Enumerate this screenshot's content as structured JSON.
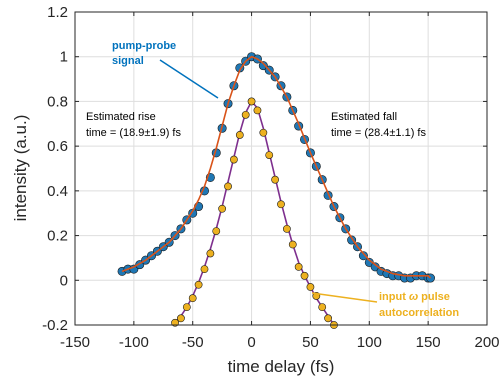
{
  "chart_data": {
    "type": "scatter",
    "xlabel": "time delay (fs)",
    "ylabel": "intensity (a.u.)",
    "xlim": [
      -150,
      200
    ],
    "ylim": [
      -0.2,
      1.2
    ],
    "xticks": [
      -150,
      -100,
      -50,
      0,
      50,
      100,
      150,
      200
    ],
    "xtick_labels": [
      "-150",
      "-100",
      "-50",
      "0",
      "50",
      "100",
      "150",
      "200"
    ],
    "yticks": [
      -0.2,
      0,
      0.2,
      0.4,
      0.6,
      0.8,
      1,
      1.2
    ],
    "ytick_labels": [
      "-0.2",
      "0",
      "0.2",
      "0.4",
      "0.6",
      "0.8",
      "1",
      "1.2"
    ],
    "grid": true,
    "colors": {
      "pump_marker": "#1f77b4",
      "pump_fit": "#d95319",
      "autocorr_marker": "#edb120",
      "autocorr_fit": "#7e2f8e",
      "pump_label": "#0072bd",
      "autocorr_label": "#edb120"
    },
    "series": [
      {
        "name": "pump-probe signal",
        "kind": "scatter",
        "x": [
          -110,
          -105,
          -100,
          -95,
          -90,
          -85,
          -80,
          -75,
          -70,
          -65,
          -60,
          -55,
          -50,
          -45,
          -40,
          -35,
          -30,
          -25,
          -20,
          -15,
          -10,
          -5,
          0,
          5,
          10,
          15,
          20,
          25,
          30,
          35,
          40,
          45,
          50,
          55,
          60,
          65,
          70,
          75,
          80,
          85,
          90,
          95,
          100,
          105,
          110,
          115,
          120,
          125,
          130,
          135,
          140,
          145,
          150,
          152
        ],
        "y": [
          0.04,
          0.05,
          0.05,
          0.07,
          0.09,
          0.11,
          0.13,
          0.15,
          0.17,
          0.2,
          0.23,
          0.27,
          0.3,
          0.33,
          0.4,
          0.46,
          0.57,
          0.68,
          0.79,
          0.87,
          0.95,
          0.98,
          1.0,
          0.99,
          0.96,
          0.94,
          0.91,
          0.87,
          0.82,
          0.76,
          0.69,
          0.63,
          0.57,
          0.51,
          0.45,
          0.38,
          0.33,
          0.28,
          0.23,
          0.18,
          0.15,
          0.11,
          0.08,
          0.06,
          0.04,
          0.03,
          0.02,
          0.02,
          0.01,
          0.01,
          0.02,
          0.02,
          0.01,
          0.01
        ]
      },
      {
        "name": "pump-probe fit",
        "kind": "line",
        "x": [
          -110,
          -100,
          -90,
          -80,
          -70,
          -60,
          -50,
          -45,
          -40,
          -35,
          -30,
          -25,
          -20,
          -15,
          -10,
          -5,
          0,
          5,
          10,
          20,
          30,
          40,
          50,
          60,
          70,
          80,
          90,
          100,
          110,
          120,
          130,
          140,
          150,
          152
        ],
        "y": [
          0.04,
          0.06,
          0.09,
          0.13,
          0.17,
          0.23,
          0.31,
          0.36,
          0.42,
          0.5,
          0.59,
          0.69,
          0.79,
          0.87,
          0.94,
          0.98,
          1.0,
          0.99,
          0.97,
          0.91,
          0.82,
          0.7,
          0.57,
          0.45,
          0.33,
          0.23,
          0.15,
          0.09,
          0.05,
          0.03,
          0.02,
          0.02,
          0.02,
          0.01
        ]
      },
      {
        "name": "input ω pulse autocorrelation",
        "kind": "scatter",
        "x": [
          -65,
          -60,
          -55,
          -50,
          -45,
          -40,
          -35,
          -30,
          -25,
          -20,
          -15,
          -10,
          -5,
          0,
          5,
          10,
          15,
          20,
          25,
          30,
          35,
          40,
          45,
          50,
          55,
          60,
          65,
          70
        ],
        "y": [
          -0.19,
          -0.17,
          -0.12,
          -0.08,
          -0.02,
          0.05,
          0.12,
          0.22,
          0.32,
          0.42,
          0.54,
          0.65,
          0.74,
          0.8,
          0.76,
          0.66,
          0.56,
          0.45,
          0.34,
          0.23,
          0.16,
          0.06,
          0.02,
          -0.03,
          -0.07,
          -0.12,
          -0.17,
          -0.2
        ]
      },
      {
        "name": "autocorrelation fit",
        "kind": "line",
        "x": [
          -67,
          -60,
          -55,
          -50,
          -45,
          -40,
          -35,
          -30,
          -25,
          -20,
          -15,
          -10,
          -5,
          0,
          5,
          10,
          15,
          20,
          25,
          30,
          35,
          40,
          45,
          50,
          55,
          60,
          65,
          70
        ],
        "y": [
          -0.2,
          -0.16,
          -0.12,
          -0.07,
          -0.01,
          0.06,
          0.14,
          0.23,
          0.33,
          0.44,
          0.55,
          0.66,
          0.75,
          0.8,
          0.77,
          0.68,
          0.57,
          0.46,
          0.35,
          0.25,
          0.16,
          0.08,
          0.02,
          -0.03,
          -0.08,
          -0.12,
          -0.16,
          -0.2
        ]
      }
    ],
    "annotations": {
      "pump_label_line1": "pump-probe",
      "pump_label_line2": "signal",
      "rise_line1": "Estimated rise",
      "rise_line2": "time = (18.9±1.9) fs",
      "fall_line1": "Estimated fall",
      "fall_line2": "time = (28.4±1.1) fs",
      "autocorr_line1_a": "input ",
      "autocorr_line1_omega": "ω",
      "autocorr_line1_b": " pulse",
      "autocorr_line2": "autocorrelation"
    }
  }
}
